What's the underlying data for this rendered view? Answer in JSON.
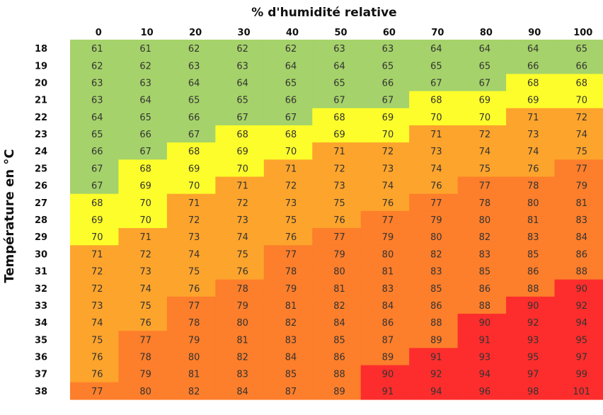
{
  "chart_data": {
    "type": "heatmap",
    "title": "% d'humidité relative",
    "xlabel": "% d'humidité relative",
    "ylabel": "Température en °C",
    "columns": [
      "0",
      "10",
      "20",
      "30",
      "40",
      "50",
      "60",
      "70",
      "80",
      "90",
      "100"
    ],
    "rows": [
      "18",
      "19",
      "20",
      "21",
      "22",
      "23",
      "24",
      "25",
      "26",
      "27",
      "28",
      "29",
      "30",
      "31",
      "32",
      "33",
      "34",
      "35",
      "36",
      "37",
      "38"
    ],
    "values": [
      [
        61,
        61,
        62,
        62,
        62,
        63,
        63,
        64,
        64,
        64,
        65
      ],
      [
        62,
        62,
        63,
        63,
        64,
        64,
        65,
        65,
        65,
        66,
        66
      ],
      [
        63,
        63,
        64,
        64,
        65,
        65,
        66,
        67,
        67,
        68,
        68
      ],
      [
        63,
        64,
        65,
        65,
        66,
        67,
        67,
        68,
        69,
        69,
        70
      ],
      [
        64,
        65,
        66,
        67,
        67,
        68,
        69,
        70,
        70,
        71,
        72
      ],
      [
        65,
        66,
        67,
        68,
        68,
        69,
        70,
        71,
        72,
        73,
        74
      ],
      [
        66,
        67,
        68,
        69,
        70,
        71,
        72,
        73,
        74,
        74,
        75
      ],
      [
        67,
        68,
        69,
        70,
        71,
        72,
        73,
        74,
        75,
        76,
        77
      ],
      [
        67,
        69,
        70,
        71,
        72,
        73,
        74,
        76,
        77,
        78,
        79
      ],
      [
        68,
        70,
        71,
        72,
        73,
        75,
        76,
        77,
        78,
        80,
        81
      ],
      [
        69,
        70,
        72,
        73,
        75,
        76,
        77,
        79,
        80,
        81,
        83
      ],
      [
        70,
        71,
        73,
        74,
        76,
        77,
        79,
        80,
        82,
        83,
        84
      ],
      [
        71,
        72,
        74,
        75,
        77,
        79,
        80,
        82,
        83,
        85,
        86
      ],
      [
        72,
        73,
        75,
        76,
        78,
        80,
        81,
        83,
        85,
        86,
        88
      ],
      [
        72,
        74,
        76,
        78,
        79,
        81,
        83,
        85,
        86,
        88,
        90
      ],
      [
        73,
        75,
        77,
        79,
        81,
        82,
        84,
        86,
        88,
        90,
        92
      ],
      [
        74,
        76,
        78,
        80,
        82,
        84,
        86,
        88,
        90,
        92,
        94
      ],
      [
        75,
        77,
        79,
        81,
        83,
        85,
        87,
        89,
        91,
        93,
        95
      ],
      [
        76,
        78,
        80,
        82,
        84,
        86,
        89,
        91,
        93,
        95,
        97
      ],
      [
        76,
        79,
        81,
        83,
        85,
        88,
        90,
        92,
        94,
        97,
        99
      ],
      [
        77,
        80,
        82,
        84,
        87,
        89,
        91,
        94,
        96,
        98,
        101
      ]
    ],
    "color_bands": [
      {
        "max": 67,
        "color": "#a5d26a"
      },
      {
        "max": 70,
        "color": "#fdfd2b"
      },
      {
        "max": 76,
        "color": "#fda42c"
      },
      {
        "max": 89,
        "color": "#fd7e2b"
      },
      {
        "max": 999,
        "color": "#fc2d2c"
      }
    ],
    "legend": "none",
    "grid": false
  }
}
